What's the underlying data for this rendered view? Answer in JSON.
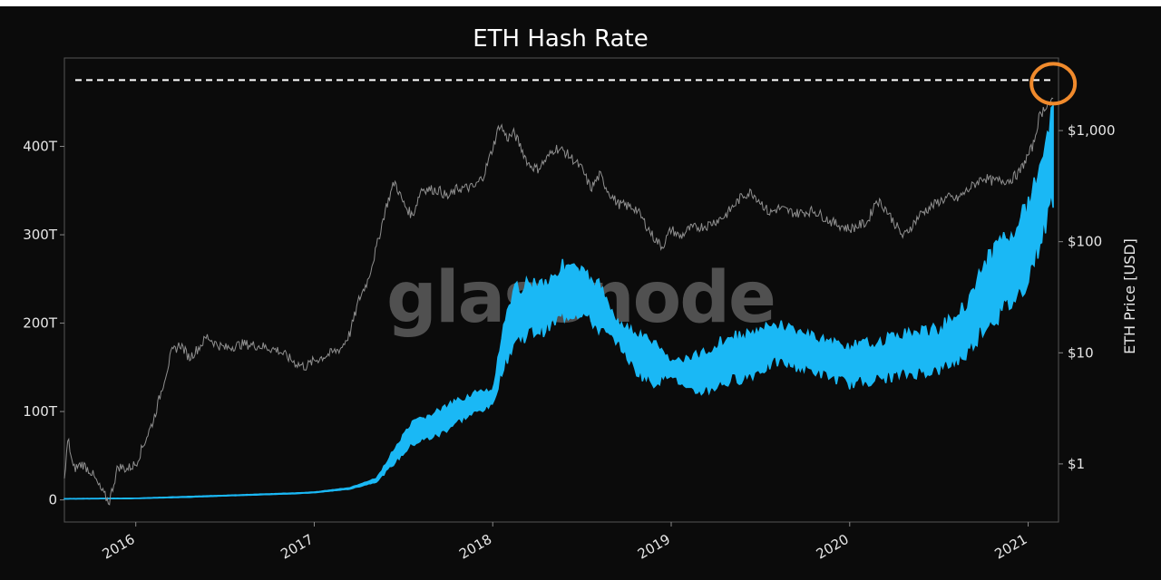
{
  "chart_data": {
    "type": "line",
    "title": "ETH Hash Rate",
    "watermark": "glassnode",
    "ylabel_right": "ETH Price [USD]",
    "ylabel_left": "",
    "grid": false,
    "x_range": [
      2015.6,
      2021.17
    ],
    "x_ticks": [
      {
        "label": "2016",
        "value": 2016.0
      },
      {
        "label": "2017",
        "value": 2017.0
      },
      {
        "label": "2018",
        "value": 2018.0
      },
      {
        "label": "2019",
        "value": 2019.0
      },
      {
        "label": "2020",
        "value": 2020.0
      },
      {
        "label": "2021",
        "value": 2021.0
      }
    ],
    "y_left_range": [
      -25,
      500
    ],
    "y_left_ticks": [
      {
        "label": "0",
        "value": 0
      },
      {
        "label": "100T",
        "value": 100
      },
      {
        "label": "200T",
        "value": 200
      },
      {
        "label": "300T",
        "value": 300
      },
      {
        "label": "400T",
        "value": 400
      }
    ],
    "y_right_scale": "log",
    "y_right_range": [
      0.3,
      4500
    ],
    "y_right_ticks": [
      {
        "label": "$1",
        "value": 1
      },
      {
        "label": "$10",
        "value": 10
      },
      {
        "label": "$100",
        "value": 100
      },
      {
        "label": "$1,000",
        "value": 1000
      }
    ],
    "reference_line": {
      "axis": "left",
      "value": 475,
      "style": "dashed",
      "color": "#ffffff"
    },
    "highlight_circle": {
      "x": 2021.12,
      "y": 473,
      "color": "#f08a2c"
    },
    "series": [
      {
        "name": "Hash Rate",
        "axis": "left",
        "color": "#1ab8f5",
        "style": "band",
        "x": [
          2015.6,
          2016.0,
          2016.3,
          2016.6,
          2016.9,
          2017.0,
          2017.2,
          2017.35,
          2017.45,
          2017.55,
          2017.7,
          2017.8,
          2017.9,
          2018.0,
          2018.05,
          2018.12,
          2018.2,
          2018.3,
          2018.4,
          2018.5,
          2018.6,
          2018.7,
          2018.8,
          2018.9,
          2019.0,
          2019.1,
          2019.2,
          2019.3,
          2019.45,
          2019.6,
          2019.8,
          2020.0,
          2020.15,
          2020.3,
          2020.5,
          2020.65,
          2020.75,
          2020.85,
          2020.95,
          2021.0,
          2021.05,
          2021.1,
          2021.14
        ],
        "low": [
          1,
          1.5,
          3,
          5,
          7,
          8,
          12,
          20,
          40,
          60,
          70,
          85,
          95,
          105,
          140,
          170,
          180,
          185,
          200,
          205,
          185,
          175,
          140,
          125,
          140,
          115,
          118,
          125,
          135,
          150,
          140,
          125,
          130,
          135,
          140,
          155,
          185,
          200,
          220,
          240,
          270,
          300,
          330
        ],
        "high": [
          1.5,
          2,
          4,
          6,
          8,
          9,
          14,
          25,
          60,
          90,
          105,
          115,
          125,
          125,
          190,
          245,
          255,
          255,
          275,
          265,
          250,
          205,
          195,
          185,
          160,
          165,
          175,
          190,
          195,
          205,
          190,
          180,
          185,
          195,
          200,
          230,
          275,
          305,
          330,
          345,
          380,
          420,
          475
        ]
      },
      {
        "name": "ETH Price",
        "axis": "right",
        "color": "#8f8f8f",
        "style": "line",
        "x": [
          2015.6,
          2015.62,
          2015.65,
          2015.7,
          2015.75,
          2015.8,
          2015.85,
          2015.9,
          2015.95,
          2016.0,
          2016.1,
          2016.15,
          2016.2,
          2016.25,
          2016.3,
          2016.35,
          2016.4,
          2016.45,
          2016.5,
          2016.6,
          2016.7,
          2016.8,
          2016.9,
          2016.95,
          2017.0,
          2017.1,
          2017.15,
          2017.2,
          2017.25,
          2017.3,
          2017.35,
          2017.4,
          2017.45,
          2017.5,
          2017.55,
          2017.6,
          2017.7,
          2017.75,
          2017.8,
          2017.9,
          2017.95,
          2018.0,
          2018.04,
          2018.08,
          2018.12,
          2018.15,
          2018.2,
          2018.25,
          2018.3,
          2018.35,
          2018.4,
          2018.45,
          2018.5,
          2018.55,
          2018.6,
          2018.65,
          2018.7,
          2018.8,
          2018.85,
          2018.9,
          2018.95,
          2019.0,
          2019.05,
          2019.1,
          2019.2,
          2019.3,
          2019.4,
          2019.45,
          2019.5,
          2019.55,
          2019.6,
          2019.7,
          2019.8,
          2019.9,
          2020.0,
          2020.1,
          2020.15,
          2020.2,
          2020.3,
          2020.4,
          2020.5,
          2020.55,
          2020.6,
          2020.7,
          2020.75,
          2020.8,
          2020.9,
          2020.95,
          2021.0,
          2021.03,
          2021.06,
          2021.1,
          2021.14
        ],
        "y": [
          0.7,
          1.7,
          0.9,
          1.0,
          0.85,
          0.6,
          0.45,
          0.95,
          0.9,
          1.0,
          2.5,
          5.0,
          10.0,
          12.0,
          9.0,
          11.0,
          14.0,
          12.0,
          11.0,
          12.0,
          11.5,
          10.5,
          8.0,
          7.5,
          8.5,
          10.0,
          11.0,
          15.0,
          30.0,
          45.0,
          90.0,
          200.0,
          350.0,
          220.0,
          170.0,
          300.0,
          290.0,
          250.0,
          300.0,
          310.0,
          400.0,
          700.0,
          1150.0,
          850.0,
          950.0,
          750.0,
          500.0,
          450.0,
          550.0,
          700.0,
          650.0,
          550.0,
          450.0,
          300.0,
          400.0,
          280.0,
          220.0,
          200.0,
          150.0,
          110.0,
          90.0,
          130.0,
          110.0,
          130.0,
          140.0,
          170.0,
          260.0,
          280.0,
          230.0,
          180.0,
          200.0,
          180.0,
          190.0,
          150.0,
          130.0,
          150.0,
          240.0,
          200.0,
          110.0,
          180.0,
          230.0,
          250.0,
          240.0,
          330.0,
          380.0,
          350.0,
          360.0,
          420.0,
          600.0,
          750.0,
          1300.0,
          1700.0,
          1800.0
        ]
      }
    ]
  }
}
